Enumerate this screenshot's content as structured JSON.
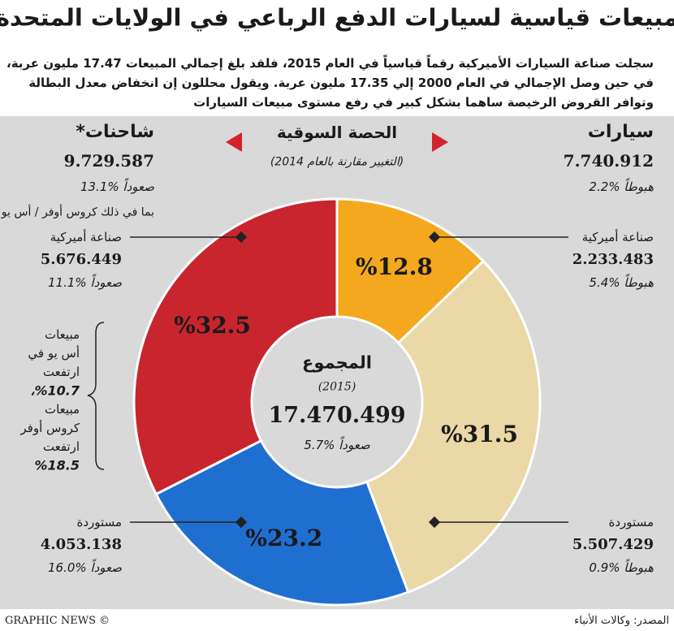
{
  "chart_data": {
    "type": "donut",
    "title": "مبيعات قياسية لسيارات الدفع الرباعي في الولايات المتحدة",
    "subtitle": [
      "سجلت صناعة السيارات الأميركية رقماً قياسياً في العام 2015، فلقد بلغ إجمالي المبيعات 17.47 مليون عربة،",
      "في حين وصل الإجمالي في العام 2000 إلي 17.35 مليون عربة. ويقول محللون إن انخفاض معدل البطالة",
      "وتوافر القروض الرخيصة ساهما بشكل كبير في رفع مستوى مبيعات السيارات"
    ],
    "share_title": "الحصة السوقية",
    "share_note": "(التغيير مقارنة بالعام 2014)",
    "groups": [
      {
        "name": "سيارات",
        "total": "7.740.912",
        "change": "هبوطاً %2.2"
      },
      {
        "name": "شاحنات*",
        "total": "9.729.587",
        "change": "صعوداً %13.1",
        "note": "بما في ذلك كروس أوفر / أس يو في"
      }
    ],
    "categories": [
      "صناعة أميركية",
      "مستوردة",
      "مستوردة",
      "صناعة أميركية"
    ],
    "values": [
      12.8,
      31.5,
      23.2,
      32.5
    ],
    "value_labels": [
      "%12.8",
      "%31.5",
      "%23.2",
      "%32.5"
    ],
    "colors": [
      "#f4a81d",
      "#ead8a6",
      "#1f6fd1",
      "#c9252f"
    ],
    "segment_totals": [
      "2.233.483",
      "5.507.429",
      "4.053.138",
      "5.676.449"
    ],
    "segment_changes": [
      "هبوطاً %5.4",
      "هبوطاً %0.9",
      "صعوداً %16.0",
      "صعوداً %11.1"
    ],
    "center": {
      "label": "المجموع",
      "year": "(2015)",
      "total": "17.470.499",
      "change": "صعوداً %5.7"
    },
    "side_note": [
      "مبيعات",
      "أس يو في",
      "ارتفعت",
      "%10.7،",
      "مبيعات",
      "كروس أوفر",
      "ارتفعت",
      "%18.5"
    ],
    "credit": "© GRAPHIC NEWS",
    "source": "المصدر: وكالات الأنباء"
  }
}
